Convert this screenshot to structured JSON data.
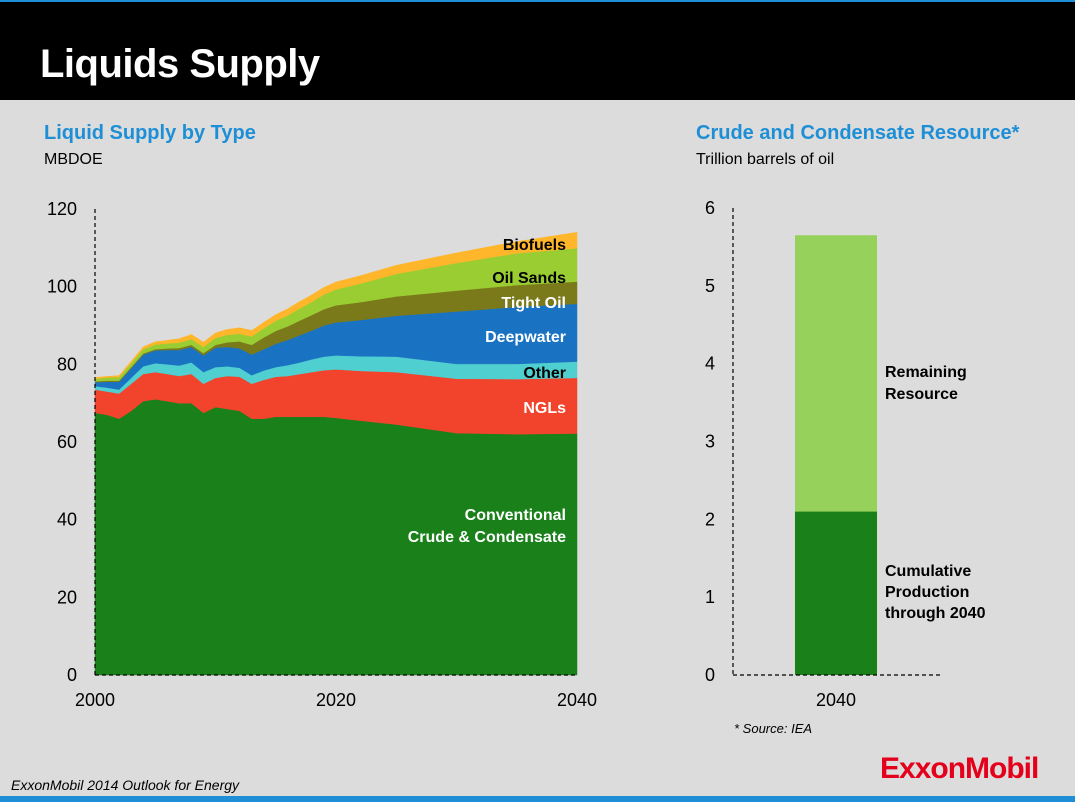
{
  "header": {
    "title": "Liquids Supply"
  },
  "footer": {
    "text": "ExxonMobil 2014 Outlook for Energy",
    "logo": "ExxonMobil",
    "source": "* Source:  IEA"
  },
  "colors": {
    "Conventional Crude & Condensate": "#1a801a",
    "NGLs": "#f2432c",
    "Other": "#4fcfcf",
    "Deepwater": "#1a72c2",
    "Tight Oil": "#7a7a1a",
    "Oil Sands": "#9acd32",
    "Biofuels": "#ffb62a",
    "Remaining Resource": "#96d25b",
    "Cumulative Production": "#1a801a"
  },
  "chart_data": [
    {
      "type": "area",
      "title": "Liquid Supply by Type",
      "ylabel": "MBDOE",
      "xlim": [
        2000,
        2040
      ],
      "ylim": [
        0,
        120
      ],
      "yticks": [
        0,
        20,
        40,
        60,
        80,
        100,
        120
      ],
      "xticks": [
        2000,
        2020,
        2040
      ],
      "x": [
        2000,
        2001,
        2002,
        2003,
        2004,
        2005,
        2006,
        2007,
        2008,
        2009,
        2010,
        2011,
        2012,
        2013,
        2014,
        2015,
        2016,
        2017,
        2018,
        2019,
        2020,
        2022,
        2025,
        2030,
        2035,
        2040
      ],
      "series": [
        {
          "name": "Conventional Crude & Condensate",
          "values": [
            67.5,
            67,
            66,
            68,
            70.5,
            71,
            70.5,
            70,
            70,
            67.5,
            69,
            68.5,
            68,
            66,
            66,
            66.5,
            66.5,
            66.5,
            66.5,
            66.5,
            66.2,
            65.5,
            64.5,
            62.3,
            62,
            62.2
          ]
        },
        {
          "name": "NGLs",
          "values": [
            6,
            6,
            6.5,
            7,
            7,
            7,
            7,
            7,
            7.5,
            7.5,
            7.5,
            8.5,
            8.8,
            9,
            10,
            10.3,
            10.5,
            11,
            11.5,
            12,
            12.5,
            12.8,
            13.5,
            14,
            14.2,
            14.3
          ]
        },
        {
          "name": "Other",
          "values": [
            0.9,
            1,
            1,
            1.5,
            2,
            2.3,
            2.5,
            2.7,
            3,
            3,
            2.8,
            2.5,
            2.3,
            2.2,
            2.4,
            2.5,
            2.8,
            3,
            3.3,
            3.5,
            3.6,
            3.8,
            4,
            3.8,
            3.9,
            4.2
          ]
        },
        {
          "name": "Deepwater",
          "values": [
            1,
            1.5,
            2,
            2.5,
            3,
            3.3,
            3.7,
            4,
            4,
            4.3,
            5,
            5,
            5,
            5.3,
            5.5,
            6,
            6.5,
            7,
            7.4,
            8,
            8.5,
            9.3,
            10.5,
            13.5,
            14.7,
            14.9
          ]
        },
        {
          "name": "Tight Oil",
          "values": [
            0.2,
            0.3,
            0.3,
            0.3,
            0.3,
            0.3,
            0.4,
            0.5,
            0.5,
            0.6,
            0.7,
            1.2,
            1.8,
            2.5,
            3,
            3.3,
            3.5,
            3.8,
            4,
            4.2,
            4.4,
            4.6,
            5,
            5.4,
            5.6,
            5.7
          ]
        },
        {
          "name": "Oil Sands",
          "values": [
            0.7,
            0.8,
            0.9,
            1,
            1.1,
            1.2,
            1.3,
            1.4,
            1.5,
            1.6,
            1.8,
            1.9,
            2,
            2.2,
            2.4,
            2.6,
            2.8,
            3.1,
            3.4,
            3.8,
            4.1,
            4.8,
            5.8,
            7.1,
            8.2,
            8.6
          ]
        },
        {
          "name": "Biofuels",
          "values": [
            0.3,
            0.3,
            0.4,
            0.5,
            0.6,
            0.7,
            0.8,
            1,
            1.2,
            1.2,
            1.3,
            1.4,
            1.5,
            1.5,
            1.5,
            1.6,
            1.7,
            1.8,
            1.8,
            1.8,
            1.9,
            2,
            2.2,
            2.6,
            3,
            4.1
          ]
        }
      ],
      "labels": [
        "Biofuels",
        "Oil Sands",
        "Tight Oil",
        "Deepwater",
        "Other",
        "NGLs",
        "Conventional",
        "Crude & Condensate"
      ]
    },
    {
      "type": "bar",
      "stacked": true,
      "title": "Crude and Condensate Resource*",
      "ylabel": "Trillion barrels of oil",
      "ylim": [
        0,
        6
      ],
      "yticks": [
        0,
        1,
        2,
        3,
        4,
        5,
        6
      ],
      "categories": [
        "2040"
      ],
      "series": [
        {
          "name": "Cumulative Production through 2040",
          "values": [
            2.1
          ]
        },
        {
          "name": "Remaining Resource",
          "values": [
            3.55
          ]
        }
      ],
      "labels": {
        "remaining": [
          "Remaining",
          "Resource"
        ],
        "cumulative": [
          "Cumulative",
          "Production",
          "through 2040"
        ]
      }
    }
  ]
}
